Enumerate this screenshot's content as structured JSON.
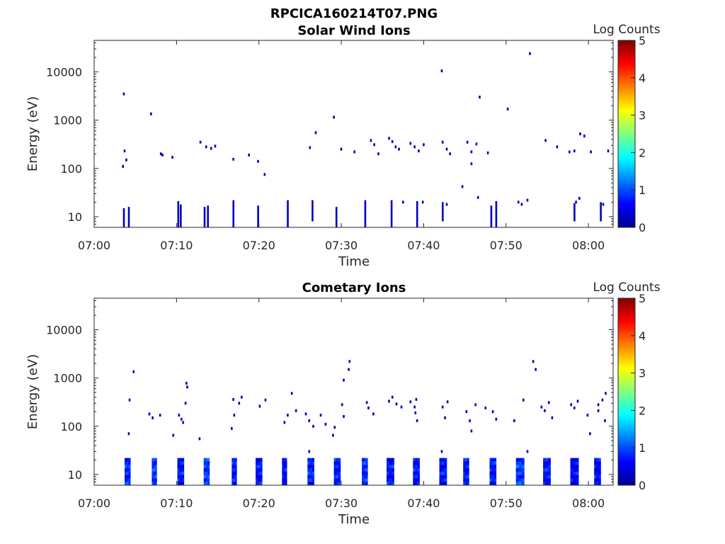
{
  "figure": {
    "title": "RPCICA160214T07.PNG"
  },
  "chart_data": [
    {
      "type": "heatmap",
      "title": "Solar Wind Ions",
      "xlabel": "Time",
      "ylabel": "Energy (eV)",
      "xlim": [
        "07:00",
        "08:03"
      ],
      "ylim": [
        6,
        45000
      ],
      "yscale": "log",
      "xticks": [
        "07:00",
        "07:10",
        "07:20",
        "07:30",
        "07:40",
        "07:50",
        "08:00"
      ],
      "yticks": [
        10,
        100,
        1000,
        10000
      ],
      "ytick_labels": [
        "10",
        "100",
        "1000",
        "10000"
      ],
      "colorbar": {
        "label": "Log Counts",
        "range": [
          0,
          5
        ],
        "ticks": [
          "0",
          "1",
          "2",
          "3",
          "4",
          "5"
        ],
        "colormap": "jet"
      },
      "grid": false,
      "points": [
        [
          3.6,
          3500,
          0.2
        ],
        [
          6.9,
          1350,
          0.2
        ],
        [
          42.2,
          10500,
          0.2
        ],
        [
          52.9,
          24000,
          0.2
        ],
        [
          46.8,
          3000,
          0.2
        ],
        [
          50.2,
          1700,
          0.2
        ],
        [
          29.1,
          1150,
          0.2
        ],
        [
          26.9,
          550,
          0.2
        ],
        [
          59.0,
          520,
          0.2
        ],
        [
          59.5,
          470,
          0.2
        ],
        [
          3.7,
          230,
          0.3
        ],
        [
          3.5,
          110,
          0.3
        ],
        [
          3.9,
          150,
          0.3
        ],
        [
          8.1,
          200,
          0.3
        ],
        [
          8.3,
          190,
          0.3
        ],
        [
          9.5,
          170,
          0.3
        ],
        [
          12.9,
          350,
          0.3
        ],
        [
          13.6,
          280,
          0.3
        ],
        [
          14.2,
          260,
          0.3
        ],
        [
          14.7,
          290,
          0.3
        ],
        [
          16.9,
          155,
          0.3
        ],
        [
          18.8,
          190,
          0.3
        ],
        [
          19.9,
          140,
          0.3
        ],
        [
          20.7,
          75,
          0.3
        ],
        [
          26.2,
          270,
          0.3
        ],
        [
          30.0,
          250,
          0.3
        ],
        [
          31.6,
          220,
          0.3
        ],
        [
          33.6,
          380,
          0.3
        ],
        [
          34.0,
          310,
          0.3
        ],
        [
          34.5,
          200,
          0.3
        ],
        [
          35.8,
          420,
          0.3
        ],
        [
          36.2,
          360,
          0.3
        ],
        [
          36.6,
          280,
          0.3
        ],
        [
          37.0,
          250,
          0.3
        ],
        [
          38.4,
          330,
          0.3
        ],
        [
          38.9,
          280,
          0.3
        ],
        [
          39.4,
          230,
          0.3
        ],
        [
          40.0,
          310,
          0.3
        ],
        [
          42.3,
          350,
          0.3
        ],
        [
          42.8,
          250,
          0.3
        ],
        [
          43.2,
          200,
          0.3
        ],
        [
          45.3,
          350,
          0.3
        ],
        [
          45.8,
          220,
          0.3
        ],
        [
          46.4,
          320,
          0.3
        ],
        [
          47.8,
          210,
          0.3
        ],
        [
          45.8,
          125,
          0.3
        ],
        [
          54.8,
          380,
          0.3
        ],
        [
          56.2,
          280,
          0.3
        ],
        [
          57.7,
          220,
          0.3
        ],
        [
          58.3,
          230,
          0.3
        ],
        [
          60.3,
          220,
          0.3
        ],
        [
          62.4,
          230,
          0.3
        ],
        [
          44.7,
          42,
          0.3
        ],
        [
          46.6,
          25,
          0.3
        ],
        [
          51.5,
          20,
          0.3
        ],
        [
          51.9,
          18,
          0.3
        ],
        [
          52.6,
          22,
          0.3
        ],
        [
          58.5,
          20,
          0.3
        ],
        [
          58.9,
          24,
          0.3
        ],
        [
          61.8,
          18,
          0.3
        ],
        [
          39.9,
          20,
          0.3
        ],
        [
          42.8,
          18,
          0.3
        ],
        [
          37.5,
          20,
          0.3
        ]
      ],
      "streaks": [
        [
          3.6,
          6,
          15
        ],
        [
          4.2,
          6,
          16
        ],
        [
          10.2,
          6,
          21
        ],
        [
          10.5,
          6,
          18
        ],
        [
          13.4,
          6,
          16
        ],
        [
          13.8,
          6,
          17
        ],
        [
          16.9,
          6,
          22
        ],
        [
          19.9,
          6,
          17
        ],
        [
          23.5,
          6,
          22
        ],
        [
          26.5,
          8,
          22
        ],
        [
          29.4,
          6,
          16
        ],
        [
          32.9,
          6,
          22
        ],
        [
          36.1,
          6,
          22
        ],
        [
          39.2,
          6,
          21
        ],
        [
          42.3,
          8,
          20
        ],
        [
          48.2,
          6,
          17
        ],
        [
          48.8,
          6,
          21
        ],
        [
          58.3,
          8,
          19
        ],
        [
          61.5,
          8,
          20
        ]
      ]
    },
    {
      "type": "heatmap",
      "title": "Cometary Ions",
      "xlabel": "Time",
      "ylabel": "Energy (eV)",
      "xlim": [
        "07:00",
        "08:03"
      ],
      "ylim": [
        6,
        45000
      ],
      "yscale": "log",
      "xticks": [
        "07:00",
        "07:10",
        "07:20",
        "07:30",
        "07:40",
        "07:50",
        "08:00"
      ],
      "yticks": [
        10,
        100,
        1000,
        10000
      ],
      "ytick_labels": [
        "10",
        "100",
        "1000",
        "10000"
      ],
      "colorbar": {
        "label": "Log Counts",
        "range": [
          0,
          5
        ],
        "ticks": [
          "0",
          "1",
          "2",
          "3",
          "4",
          "5"
        ],
        "colormap": "jet"
      },
      "grid": false,
      "blocks": [
        [
          3.7,
          4.4,
          0.8
        ],
        [
          7.0,
          7.6,
          0.9
        ],
        [
          10.1,
          10.9,
          0.7
        ],
        [
          13.3,
          14.0,
          0.9
        ],
        [
          16.7,
          17.3,
          0.7
        ],
        [
          19.6,
          20.4,
          0.7
        ],
        [
          22.8,
          23.4,
          0.6
        ],
        [
          25.9,
          26.7,
          0.8
        ],
        [
          29.1,
          29.9,
          0.7
        ],
        [
          32.5,
          33.2,
          0.8
        ],
        [
          35.5,
          36.4,
          0.7
        ],
        [
          38.7,
          39.5,
          0.7
        ],
        [
          41.9,
          42.8,
          0.7
        ],
        [
          44.8,
          45.5,
          0.7
        ],
        [
          48.0,
          48.8,
          0.7
        ],
        [
          51.2,
          52.2,
          0.9
        ],
        [
          54.5,
          55.4,
          0.7
        ],
        [
          57.8,
          58.8,
          0.6
        ],
        [
          60.7,
          61.5,
          0.6
        ]
      ],
      "points": [
        [
          4.8,
          1350,
          0.2
        ],
        [
          4.3,
          350,
          0.2
        ],
        [
          4.2,
          70,
          0.2
        ],
        [
          6.7,
          180,
          0.2
        ],
        [
          7.1,
          150,
          0.2
        ],
        [
          8.0,
          170,
          0.2
        ],
        [
          9.6,
          65,
          0.2
        ],
        [
          10.3,
          170,
          0.2
        ],
        [
          10.6,
          140,
          0.2
        ],
        [
          10.8,
          120,
          0.2
        ],
        [
          11.2,
          780,
          0.2
        ],
        [
          11.3,
          650,
          0.2
        ],
        [
          11.1,
          300,
          0.2
        ],
        [
          12.8,
          55,
          0.2
        ],
        [
          16.9,
          360,
          0.2
        ],
        [
          17.0,
          170,
          0.2
        ],
        [
          16.7,
          90,
          0.2
        ],
        [
          17.6,
          300,
          0.2
        ],
        [
          17.9,
          400,
          0.2
        ],
        [
          20.8,
          350,
          0.2
        ],
        [
          20.1,
          260,
          0.2
        ],
        [
          24.0,
          480,
          0.2
        ],
        [
          23.5,
          170,
          0.2
        ],
        [
          23.1,
          120,
          0.2
        ],
        [
          24.5,
          210,
          0.2
        ],
        [
          25.7,
          180,
          0.2
        ],
        [
          26.1,
          130,
          0.2
        ],
        [
          26.6,
          100,
          0.2
        ],
        [
          27.5,
          170,
          0.2
        ],
        [
          28.1,
          110,
          0.2
        ],
        [
          29.2,
          95,
          0.2
        ],
        [
          29.0,
          65,
          0.2
        ],
        [
          30.3,
          900,
          0.2
        ],
        [
          30.9,
          1500,
          0.2
        ],
        [
          31.0,
          2200,
          0.2
        ],
        [
          30.1,
          280,
          0.2
        ],
        [
          30.3,
          160,
          0.2
        ],
        [
          33.1,
          310,
          0.2
        ],
        [
          33.3,
          240,
          0.2
        ],
        [
          33.9,
          180,
          0.2
        ],
        [
          35.8,
          330,
          0.2
        ],
        [
          36.2,
          400,
          0.2
        ],
        [
          36.7,
          290,
          0.2
        ],
        [
          37.3,
          250,
          0.2
        ],
        [
          38.4,
          320,
          0.2
        ],
        [
          39.1,
          360,
          0.2
        ],
        [
          38.9,
          250,
          0.2
        ],
        [
          39.0,
          190,
          0.2
        ],
        [
          39.2,
          130,
          0.2
        ],
        [
          42.3,
          250,
          0.2
        ],
        [
          42.6,
          150,
          0.2
        ],
        [
          42.9,
          320,
          0.2
        ],
        [
          45.2,
          200,
          0.2
        ],
        [
          45.6,
          130,
          0.2
        ],
        [
          45.8,
          80,
          0.2
        ],
        [
          46.3,
          280,
          0.2
        ],
        [
          47.5,
          240,
          0.2
        ],
        [
          48.4,
          200,
          0.2
        ],
        [
          48.8,
          140,
          0.2
        ],
        [
          51.0,
          130,
          0.2
        ],
        [
          52.1,
          350,
          0.2
        ],
        [
          53.3,
          2200,
          0.2
        ],
        [
          53.6,
          1500,
          0.2
        ],
        [
          54.3,
          250,
          0.2
        ],
        [
          54.7,
          210,
          0.2
        ],
        [
          55.2,
          310,
          0.2
        ],
        [
          55.6,
          150,
          0.2
        ],
        [
          57.9,
          280,
          0.2
        ],
        [
          58.3,
          240,
          0.2
        ],
        [
          58.7,
          330,
          0.2
        ],
        [
          59.9,
          170,
          0.2
        ],
        [
          61.2,
          280,
          0.2
        ],
        [
          61.7,
          350,
          0.2
        ],
        [
          62.1,
          480,
          0.2
        ],
        [
          60.2,
          70,
          0.2
        ],
        [
          62.0,
          130,
          0.2
        ],
        [
          61.2,
          210,
          0.2
        ],
        [
          26.1,
          30,
          0.3
        ],
        [
          42.2,
          30,
          0.3
        ],
        [
          52.6,
          30,
          0.3
        ]
      ]
    }
  ]
}
